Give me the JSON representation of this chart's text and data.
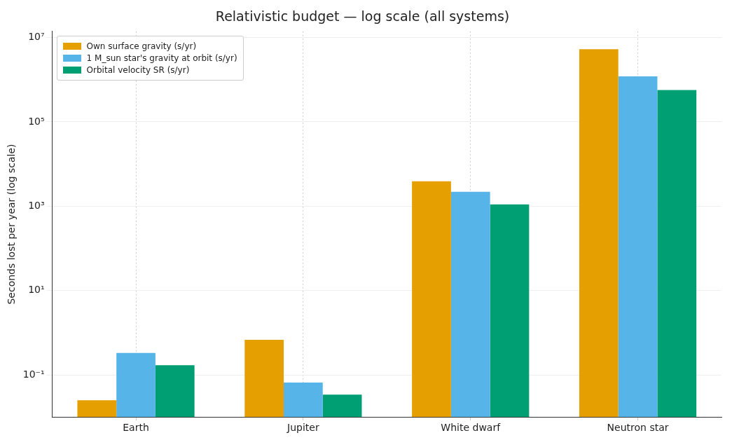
{
  "chart_data": {
    "type": "bar",
    "title": "Relativistic budget — log scale (all systems)",
    "ylabel": "Seconds lost per year (log scale)",
    "categories": [
      "Earth",
      "Jupiter",
      "White dwarf",
      "Neutron star"
    ],
    "series": [
      {
        "name": "Own surface gravity (s/yr)",
        "color": "#e69f00",
        "values": [
          0.025,
          0.68,
          3900,
          5300000
        ]
      },
      {
        "name": "1 M_sun star's gravity at orbit (s/yr)",
        "color": "#56b4e9",
        "values": [
          0.33,
          0.066,
          2200,
          1200000
        ]
      },
      {
        "name": "Orbital velocity SR (s/yr)",
        "color": "#009e73",
        "values": [
          0.17,
          0.034,
          1100,
          570000
        ]
      }
    ],
    "log": true,
    "ylim": [
      0.01,
      14000000
    ],
    "yticks": [
      {
        "value": 0.1,
        "label": "10⁻¹"
      },
      {
        "value": 10,
        "label": "10¹"
      },
      {
        "value": 1000,
        "label": "10³"
      },
      {
        "value": 100000,
        "label": "10⁵"
      },
      {
        "value": 10000000,
        "label": "10⁷"
      }
    ],
    "grid": true,
    "legend": "top left"
  }
}
